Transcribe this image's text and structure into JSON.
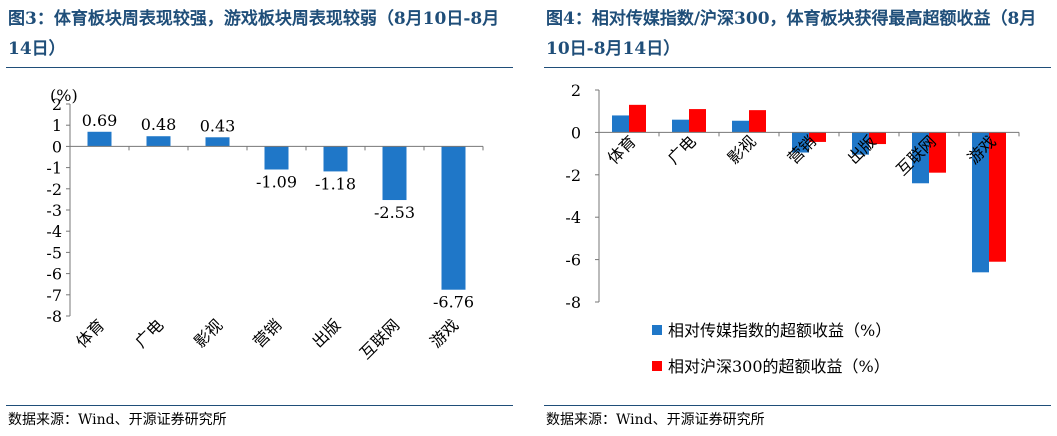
{
  "left": {
    "title": "图3：体育板块周表现较强，游戏板块周表现较弱（8月10日-8月14日）",
    "source": "数据来源：Wind、开源证券研究所",
    "chart_data": {
      "type": "bar",
      "unit_label": "(%)",
      "categories": [
        "体育",
        "广电",
        "影视",
        "营销",
        "出版",
        "互联网",
        "游戏"
      ],
      "values": [
        0.69,
        0.48,
        0.43,
        -1.09,
        -1.18,
        -2.53,
        -6.76
      ],
      "data_labels": [
        "0.69",
        "0.48",
        "0.43",
        "-1.09",
        "-1.18",
        "-2.53",
        "-6.76"
      ],
      "ylim": [
        -8,
        2
      ],
      "yticks": [
        2,
        1,
        0,
        -1,
        -2,
        -3,
        -4,
        -5,
        -6,
        -7,
        -8
      ],
      "ytick_labels": [
        "2",
        "1",
        "0",
        "-1",
        "-2",
        "-3",
        "-4",
        "-5",
        "-6",
        "-7",
        "-8"
      ],
      "bar_color": "#1f77c8",
      "grid": false
    }
  },
  "right": {
    "title": "图4：相对传媒指数/沪深300，体育板块获得最高超额收益（8月10日-8月14日）",
    "source": "数据来源：Wind、开源证券研究所",
    "chart_data": {
      "type": "bar",
      "categories": [
        "体育",
        "广电",
        "影视",
        "营销",
        "出版",
        "互联网",
        "游戏"
      ],
      "series": [
        {
          "name": "相对传媒指数的超额收益（%）",
          "color": "#1f77c8",
          "values": [
            0.8,
            0.6,
            0.55,
            -0.95,
            -1.05,
            -2.4,
            -6.6
          ]
        },
        {
          "name": "相对沪深300的超额收益（%）",
          "color": "#ff0000",
          "values": [
            1.3,
            1.1,
            1.05,
            -0.45,
            -0.55,
            -1.9,
            -6.1
          ]
        }
      ],
      "ylim": [
        -8,
        2
      ],
      "yticks": [
        2,
        0,
        -2,
        -4,
        -6,
        -8
      ],
      "ytick_labels": [
        "2",
        "0",
        "-2",
        "-4",
        "-6",
        "-8"
      ],
      "legend_position": "bottom",
      "grid": false
    }
  }
}
